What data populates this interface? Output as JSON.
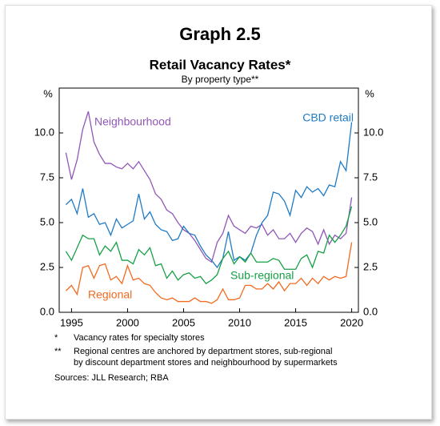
{
  "chart_data": {
    "type": "line",
    "title": "Graph 2.5",
    "subtitle": "Retail Vacancy Rates*",
    "subsubtitle": "By property type**",
    "y_unit": "%",
    "y2_unit": "%",
    "x": [
      1994.5,
      1995,
      1995.5,
      1996,
      1996.5,
      1997,
      1997.5,
      1998,
      1998.5,
      1999,
      1999.5,
      2000,
      2000.5,
      2001,
      2001.5,
      2002,
      2002.5,
      2003,
      2003.5,
      2004,
      2004.5,
      2005,
      2005.5,
      2006,
      2006.5,
      2007,
      2007.5,
      2008,
      2008.5,
      2009,
      2009.5,
      2010,
      2010.5,
      2011,
      2011.5,
      2012,
      2012.5,
      2013,
      2013.5,
      2014,
      2014.5,
      2015,
      2015.5,
      2016,
      2016.5,
      2017,
      2017.5,
      2018,
      2018.5,
      2019,
      2019.5,
      2020
    ],
    "series": [
      {
        "name": "Neighbourhood",
        "color": "#9157b8",
        "values": [
          8.9,
          7.4,
          8.5,
          10.2,
          11.2,
          9.5,
          8.8,
          8.3,
          8.3,
          8.1,
          8.0,
          8.3,
          8.0,
          8.4,
          7.9,
          7.4,
          6.6,
          6.3,
          5.7,
          5.5,
          5.0,
          4.6,
          4.4,
          4.0,
          3.5,
          3.0,
          2.8,
          3.9,
          4.4,
          5.4,
          4.8,
          4.6,
          4.4,
          4.8,
          4.7,
          4.9,
          4.3,
          4.6,
          4.1,
          4.1,
          4.4,
          3.9,
          4.4,
          4.7,
          4.5,
          3.8,
          4.6,
          3.8,
          4.3,
          4.1,
          4.4,
          6.4
        ]
      },
      {
        "name": "CBD retail",
        "color": "#1f7bc6",
        "values": [
          6.0,
          6.3,
          5.5,
          6.9,
          5.3,
          5.5,
          4.9,
          5.0,
          4.3,
          5.2,
          4.7,
          4.9,
          5.1,
          6.6,
          5.2,
          5.6,
          4.9,
          4.6,
          4.5,
          4.0,
          4.1,
          4.8,
          4.4,
          4.3,
          3.7,
          3.2,
          2.9,
          2.5,
          3.0,
          4.5,
          2.9,
          3.1,
          2.9,
          3.3,
          4.3,
          5.0,
          5.4,
          6.7,
          6.6,
          6.2,
          5.4,
          6.8,
          6.4,
          7.0,
          6.7,
          6.9,
          6.5,
          7.1,
          7.0,
          8.4,
          7.9,
          10.6
        ]
      },
      {
        "name": "Sub-regional",
        "color": "#16a046",
        "values": [
          3.4,
          2.9,
          3.6,
          4.3,
          4.1,
          4.1,
          3.2,
          3.7,
          3.4,
          3.9,
          2.9,
          2.9,
          2.7,
          3.5,
          3.2,
          3.6,
          2.6,
          2.7,
          1.9,
          2.3,
          1.8,
          2.1,
          2.2,
          1.9,
          2.0,
          1.6,
          1.8,
          2.1,
          3.0,
          3.4,
          2.7,
          3.1,
          2.8,
          3.3,
          2.8,
          2.8,
          2.8,
          3.0,
          2.9,
          2.4,
          2.4,
          2.4,
          3.0,
          3.2,
          2.5,
          3.4,
          3.3,
          4.3,
          3.9,
          4.3,
          4.8,
          5.9
        ]
      },
      {
        "name": "Regional",
        "color": "#f26a1f",
        "values": [
          1.2,
          1.5,
          1.0,
          2.5,
          2.6,
          1.9,
          2.6,
          2.7,
          1.8,
          2.0,
          1.6,
          2.6,
          1.8,
          1.9,
          1.6,
          1.5,
          1.1,
          0.8,
          0.7,
          0.8,
          0.6,
          0.6,
          0.6,
          0.8,
          0.6,
          0.6,
          0.5,
          0.7,
          1.3,
          0.7,
          0.7,
          0.8,
          1.5,
          1.5,
          1.3,
          1.3,
          1.6,
          1.3,
          1.7,
          1.2,
          1.6,
          1.6,
          1.9,
          1.5,
          1.9,
          1.6,
          2.0,
          1.8,
          2.0,
          1.9,
          2.0,
          3.9
        ]
      }
    ],
    "xlim": [
      1993.9,
      2020.6
    ],
    "xticks": [
      1995,
      2000,
      2005,
      2010,
      2015,
      2020
    ],
    "ylim": [
      0,
      12.5
    ],
    "yticks": [
      {
        "value": 0,
        "label": "0.0"
      },
      {
        "value": 2.5,
        "label": "2.5"
      },
      {
        "value": 5,
        "label": "5.0"
      },
      {
        "value": 7.5,
        "label": "7.5"
      },
      {
        "value": 10,
        "label": "10.0"
      }
    ],
    "y2lim": [
      0,
      12.5
    ],
    "y2ticks": [
      {
        "value": 0,
        "label": "0.0"
      },
      {
        "value": 2.5,
        "label": "2.5"
      },
      {
        "value": 5,
        "label": "5.0"
      },
      {
        "value": 7.5,
        "label": "7.5"
      },
      {
        "value": 10,
        "label": "10.0"
      }
    ],
    "grid": false,
    "notes": [
      {
        "mark": "*",
        "lines": [
          "Vacancy rates for specialty stores"
        ]
      },
      {
        "mark": "**",
        "lines": [
          "Regional centres are anchored by department stores, sub-regional",
          "by discount department stores and neighbourhood by supermarkets"
        ]
      }
    ],
    "source": "Sources: JLL Research; RBA"
  }
}
